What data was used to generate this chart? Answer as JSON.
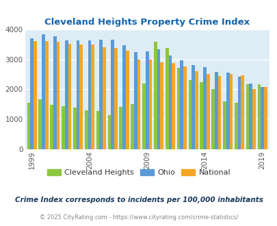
{
  "title": "Cleveland Heights Property Crime Index",
  "subtitle": "Crime Index corresponds to incidents per 100,000 inhabitants",
  "footer": "© 2025 CityRating.com - https://www.cityrating.com/crime-statistics/",
  "years": [
    1999,
    2000,
    2001,
    2002,
    2003,
    2004,
    2005,
    2006,
    2007,
    2008,
    2009,
    2010,
    2011,
    2012,
    2013,
    2014,
    2015,
    2016,
    2017,
    2018,
    2019
  ],
  "cleveland_heights": [
    1560,
    1660,
    1490,
    1430,
    1380,
    1290,
    1280,
    1150,
    1420,
    1510,
    2190,
    3580,
    3390,
    2720,
    2310,
    2240,
    2000,
    1600,
    1560,
    2170,
    2170
  ],
  "ohio": [
    3700,
    3840,
    3780,
    3630,
    3640,
    3640,
    3660,
    3660,
    3470,
    3250,
    3270,
    3340,
    3120,
    2960,
    2800,
    2730,
    2590,
    2560,
    2420,
    2180,
    2080
  ],
  "national": [
    3600,
    3620,
    3580,
    3520,
    3490,
    3500,
    3410,
    3380,
    3290,
    3000,
    2980,
    2900,
    2870,
    2770,
    2600,
    2510,
    2450,
    2500,
    2460,
    2000,
    2070
  ],
  "colors": {
    "cleveland_heights": "#8dc63f",
    "ohio": "#5b9bd5",
    "national": "#f5a623"
  },
  "background_color": "#deedf5",
  "ylim": [
    0,
    4000
  ],
  "yticks": [
    0,
    1000,
    2000,
    3000,
    4000
  ],
  "xtick_positions": [
    1999,
    2004,
    2009,
    2014,
    2019
  ],
  "title_color": "#1464af",
  "subtitle_color": "#1a3a5c",
  "footer_color": "#888888",
  "legend_labels": [
    "Cleveland Heights",
    "Ohio",
    "National"
  ]
}
